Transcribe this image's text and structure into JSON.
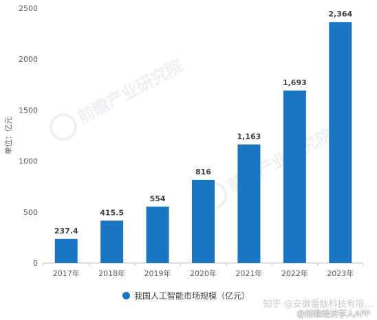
{
  "chart_data": {
    "type": "bar",
    "categories": [
      "2017年",
      "2018年",
      "2019年",
      "2020年",
      "2021年",
      "2022年",
      "2023年"
    ],
    "values": [
      237.4,
      415.5,
      554,
      816,
      1163,
      1693,
      2364
    ],
    "value_labels": [
      "237.4",
      "415.5",
      "554",
      "816",
      "1,163",
      "1,693",
      "2,364"
    ],
    "ylabel": "单位：亿元",
    "ylim": [
      0,
      2500
    ],
    "yticks": [
      0,
      500,
      1000,
      1500,
      2000,
      2500
    ],
    "grid": false,
    "bar_color": "#1a75c2",
    "legend": {
      "label": "我国人工智能市场规模（亿元）",
      "placement": "bottom"
    }
  },
  "watermark": {
    "brand": "前瞻产业研究院",
    "source": "知乎 @安徽雷肽科技有限...",
    "app": "@前瞻经济学人APP"
  }
}
